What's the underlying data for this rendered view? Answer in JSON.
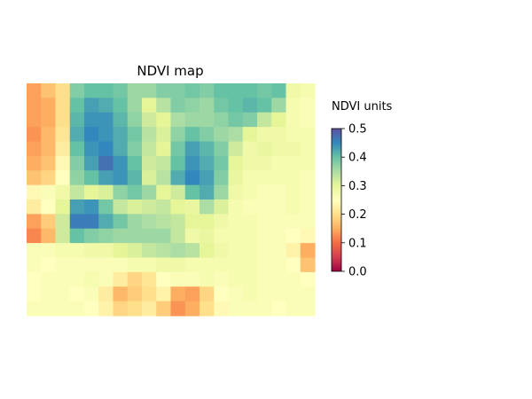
{
  "chart_data": {
    "type": "heatmap",
    "title": "NDVI map",
    "xlabel": "",
    "ylabel": "",
    "colorbar": {
      "label": "NDVI units",
      "range": [
        0.0,
        0.5
      ],
      "ticks": [
        0.0,
        0.1,
        0.2,
        0.3,
        0.4,
        0.5
      ],
      "tick_labels": [
        "0.0",
        "0.1",
        "0.2",
        "0.3",
        "0.4",
        "0.5"
      ],
      "colormap": "Spectral",
      "colormap_stops": [
        "#9e0142",
        "#d53e4f",
        "#f46d43",
        "#fdae61",
        "#fee08b",
        "#ffffbf",
        "#e6f598",
        "#abdda4",
        "#66c2a5",
        "#3288bd",
        "#5e4fa2"
      ]
    },
    "axes_visible": false,
    "grid": false,
    "rows": 16,
    "cols": 20,
    "values": [
      [
        0.14,
        0.17,
        0.2,
        0.38,
        0.4,
        0.4,
        0.39,
        0.36,
        0.36,
        0.38,
        0.38,
        0.39,
        0.38,
        0.4,
        0.4,
        0.4,
        0.39,
        0.4,
        0.28,
        0.27
      ],
      [
        0.14,
        0.15,
        0.2,
        0.4,
        0.43,
        0.42,
        0.4,
        0.36,
        0.3,
        0.34,
        0.38,
        0.37,
        0.36,
        0.39,
        0.4,
        0.41,
        0.4,
        0.36,
        0.27,
        0.26
      ],
      [
        0.14,
        0.15,
        0.2,
        0.41,
        0.44,
        0.44,
        0.41,
        0.37,
        0.32,
        0.3,
        0.35,
        0.36,
        0.36,
        0.37,
        0.39,
        0.38,
        0.33,
        0.3,
        0.27,
        0.26
      ],
      [
        0.13,
        0.16,
        0.21,
        0.42,
        0.45,
        0.44,
        0.42,
        0.39,
        0.34,
        0.31,
        0.37,
        0.4,
        0.38,
        0.36,
        0.35,
        0.3,
        0.28,
        0.28,
        0.27,
        0.27
      ],
      [
        0.14,
        0.16,
        0.22,
        0.4,
        0.44,
        0.45,
        0.42,
        0.38,
        0.33,
        0.3,
        0.39,
        0.43,
        0.41,
        0.38,
        0.32,
        0.28,
        0.29,
        0.28,
        0.28,
        0.27
      ],
      [
        0.15,
        0.17,
        0.24,
        0.38,
        0.43,
        0.47,
        0.44,
        0.4,
        0.32,
        0.33,
        0.4,
        0.44,
        0.42,
        0.39,
        0.3,
        0.28,
        0.28,
        0.27,
        0.27,
        0.27
      ],
      [
        0.17,
        0.19,
        0.25,
        0.37,
        0.4,
        0.43,
        0.44,
        0.41,
        0.31,
        0.34,
        0.42,
        0.45,
        0.43,
        0.38,
        0.29,
        0.27,
        0.27,
        0.27,
        0.27,
        0.26
      ],
      [
        0.24,
        0.26,
        0.28,
        0.33,
        0.3,
        0.31,
        0.37,
        0.39,
        0.36,
        0.3,
        0.32,
        0.4,
        0.42,
        0.36,
        0.28,
        0.27,
        0.26,
        0.26,
        0.27,
        0.26
      ],
      [
        0.22,
        0.25,
        0.3,
        0.43,
        0.44,
        0.39,
        0.33,
        0.31,
        0.32,
        0.33,
        0.3,
        0.29,
        0.35,
        0.31,
        0.27,
        0.26,
        0.26,
        0.26,
        0.27,
        0.26
      ],
      [
        0.14,
        0.18,
        0.32,
        0.46,
        0.46,
        0.42,
        0.39,
        0.36,
        0.35,
        0.34,
        0.33,
        0.3,
        0.3,
        0.28,
        0.27,
        0.27,
        0.26,
        0.26,
        0.26,
        0.26
      ],
      [
        0.12,
        0.16,
        0.32,
        0.4,
        0.38,
        0.37,
        0.36,
        0.36,
        0.36,
        0.36,
        0.33,
        0.28,
        0.29,
        0.27,
        0.27,
        0.27,
        0.26,
        0.26,
        0.25,
        0.24
      ],
      [
        0.26,
        0.26,
        0.27,
        0.27,
        0.28,
        0.28,
        0.3,
        0.31,
        0.33,
        0.34,
        0.35,
        0.34,
        0.3,
        0.28,
        0.27,
        0.27,
        0.26,
        0.26,
        0.23,
        0.15
      ],
      [
        0.26,
        0.25,
        0.26,
        0.26,
        0.26,
        0.26,
        0.26,
        0.27,
        0.27,
        0.28,
        0.28,
        0.27,
        0.27,
        0.27,
        0.27,
        0.27,
        0.26,
        0.26,
        0.25,
        0.17
      ],
      [
        0.25,
        0.26,
        0.26,
        0.26,
        0.27,
        0.26,
        0.22,
        0.19,
        0.21,
        0.25,
        0.26,
        0.26,
        0.27,
        0.26,
        0.27,
        0.27,
        0.26,
        0.26,
        0.26,
        0.25
      ],
      [
        0.25,
        0.26,
        0.26,
        0.25,
        0.26,
        0.22,
        0.16,
        0.18,
        0.2,
        0.23,
        0.15,
        0.14,
        0.19,
        0.25,
        0.26,
        0.27,
        0.26,
        0.26,
        0.26,
        0.26
      ],
      [
        0.26,
        0.26,
        0.26,
        0.26,
        0.25,
        0.23,
        0.19,
        0.2,
        0.22,
        0.18,
        0.13,
        0.15,
        0.2,
        0.24,
        0.26,
        0.26,
        0.26,
        0.25,
        0.26,
        0.26
      ]
    ]
  }
}
